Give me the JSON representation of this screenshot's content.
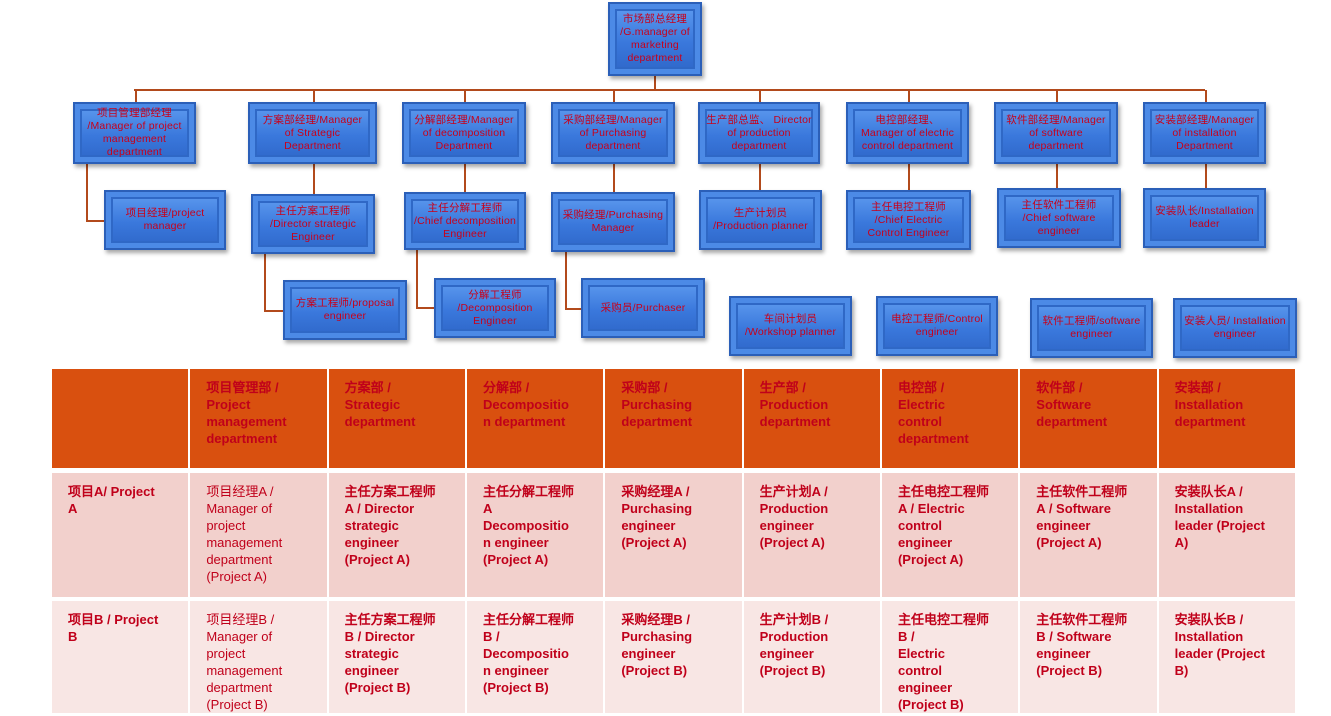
{
  "org_chart": {
    "top": "市场部总经理\n/G.manager of\nmarketing\ndepartment",
    "managers": [
      "项目管理部经理\n/Manager of project\nmanagement\ndepartment",
      "方案部经理/Manager\nof Strategic\nDepartment",
      "分解部经理/Manager\nof decomposition\nDepartment",
      "采购部经理/Manager\nof Purchasing\ndepartment",
      "生产部总监、 Director\nof production\ndepartment",
      "电控部经理、\nManager of electric\ncontrol department",
      "软件部经理/Manager\nof software\ndepartment",
      "安装部经理/Manager\nof installation\nDepartment"
    ],
    "level2": [
      "项目经理/project\nmanager",
      "主任方案工程师\n/Director strategic\nEngineer",
      "主任分解工程师\n/Chief decomposition\nEngineer",
      "采购经理/Purchasing\nManager",
      "生产计划员\n/Production planner",
      "主任电控工程师\n/Chief Electric\nControl Engineer",
      "主任软件工程师\n/Chief software\nengineer",
      "安装队长/Installation\nleader"
    ],
    "level3": [
      "方案工程师/proposal\nengineer",
      "分解工程师\n/Decomposition\nEngineer",
      "采购员/Purchaser",
      "车间计划员\n/Workshop planner",
      "电控工程师/Control\nengineer",
      "软件工程师/software\nengineer",
      "安装人员/ Installation\nengineer"
    ]
  },
  "table": {
    "headers": [
      "",
      "项目管理部 /\nProject\nmanagement\ndepartment",
      "方案部 /\nStrategic\ndepartment",
      "分解部 /\nDecompositio\nn department",
      "采购部 /\nPurchasing\ndepartment",
      "生产部 /\nProduction\ndepartment",
      "电控部 /\nElectric\ncontrol\ndepartment",
      "软件部 /\nSoftware\ndepartment",
      "安装部 /\nInstallation\ndepartment"
    ],
    "rows": [
      [
        "项目A/ Project\nA",
        "项目经理A /\nManager of\nproject\nmanagement\ndepartment\n(Project A)",
        "主任方案工程师\nA / Director\nstrategic\nengineer\n(Project A)",
        "主任分解工程师\nA\nDecompositio\nn engineer\n(Project A)",
        "采购经理A /\nPurchasing\nengineer\n(Project A)",
        "生产计划A /\nProduction\nengineer\n(Project A)",
        "主任电控工程师\nA / Electric\ncontrol\nengineer\n(Project A)",
        "主任软件工程师\nA / Software\nengineer\n(Project A)",
        "安装队长A /\nInstallation\nleader (Project\nA)"
      ],
      [
        "项目B / Project\nB",
        "项目经理B /\nManager of\nproject\nmanagement\ndepartment\n(Project B)",
        "主任方案工程师\nB / Director\nstrategic\nengineer\n(Project B)",
        "主任分解工程师\nB /\nDecompositio\nn engineer\n(Project B)",
        "采购经理B /\nPurchasing\nengineer\n(Project B)",
        "生产计划B /\nProduction\nengineer\n(Project B)",
        "主任电控工程师\nB /\nElectric\ncontrol\nengineer\n(Project B)",
        "主任软件工程师\nB / Software\nengineer\n(Project B)",
        "安装队长B /\nInstallation\nleader (Project\nB)"
      ]
    ]
  },
  "colors": {
    "box_blue": "#3a78dc",
    "box_text": "#c8001a",
    "connector": "#b24a1c",
    "header_bg": "#d9500f",
    "row_a_bg": "#f2d0cc",
    "row_b_bg": "#f8e6e4"
  }
}
